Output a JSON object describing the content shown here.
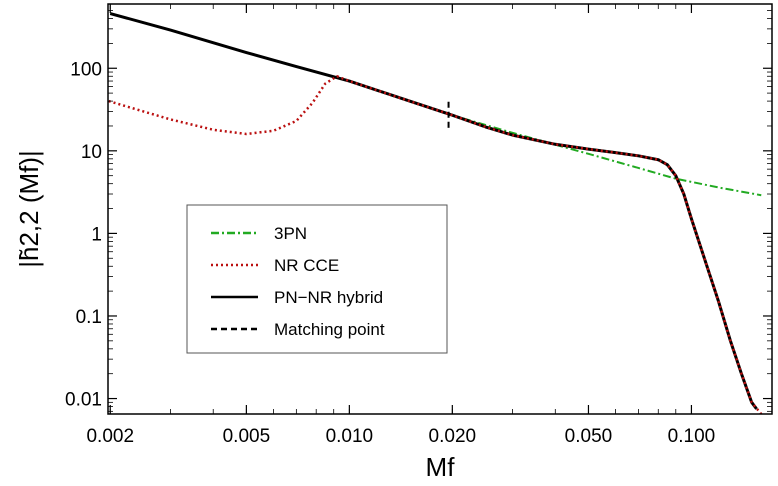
{
  "chart_data": {
    "type": "line",
    "xlabel": "Mf",
    "ylabel": "|h̃2,2 (Mf)|",
    "xscale": "log",
    "yscale": "log",
    "xlim": [
      0.00197,
      0.172
    ],
    "ylim": [
      0.0065,
      600
    ],
    "grid": false,
    "legend_position": "lower-left",
    "x_ticks": [
      {
        "value": 0.002,
        "label": "0.002"
      },
      {
        "value": 0.005,
        "label": "0.005"
      },
      {
        "value": 0.01,
        "label": "0.010"
      },
      {
        "value": 0.02,
        "label": "0.020"
      },
      {
        "value": 0.05,
        "label": "0.050"
      },
      {
        "value": 0.1,
        "label": "0.100"
      }
    ],
    "y_ticks": [
      {
        "value": 0.01,
        "label": "0.01"
      },
      {
        "value": 0.1,
        "label": "0.1"
      },
      {
        "value": 1,
        "label": "1"
      },
      {
        "value": 10,
        "label": "10"
      },
      {
        "value": 100,
        "label": "100"
      }
    ],
    "series": [
      {
        "name": "3PN",
        "color": "#22aa22",
        "style": "dash-dot",
        "points": [
          [
            0.002,
            460
          ],
          [
            0.003,
            290
          ],
          [
            0.005,
            155
          ],
          [
            0.007,
            105
          ],
          [
            0.01,
            70
          ],
          [
            0.015,
            40
          ],
          [
            0.02,
            27
          ],
          [
            0.03,
            16.5
          ],
          [
            0.05,
            9.2
          ],
          [
            0.07,
            6.2
          ],
          [
            0.09,
            4.6
          ],
          [
            0.12,
            3.6
          ],
          [
            0.16,
            2.9
          ]
        ]
      },
      {
        "name": "NR CCE",
        "color": "#bb1111",
        "style": "dotted",
        "points": [
          [
            0.00198,
            40
          ],
          [
            0.0025,
            30
          ],
          [
            0.003,
            24
          ],
          [
            0.004,
            18
          ],
          [
            0.005,
            16
          ],
          [
            0.006,
            17.5
          ],
          [
            0.007,
            23
          ],
          [
            0.0078,
            38
          ],
          [
            0.0085,
            65
          ],
          [
            0.0092,
            80
          ],
          [
            0.01,
            70
          ],
          [
            0.015,
            40
          ],
          [
            0.02,
            27
          ],
          [
            0.025,
            19.5
          ],
          [
            0.03,
            15.5
          ],
          [
            0.04,
            12
          ],
          [
            0.05,
            10.5
          ],
          [
            0.06,
            9.5
          ],
          [
            0.07,
            8.7
          ],
          [
            0.08,
            7.8
          ],
          [
            0.085,
            6.8
          ],
          [
            0.09,
            5
          ],
          [
            0.095,
            3
          ],
          [
            0.1,
            1.5
          ],
          [
            0.11,
            0.45
          ],
          [
            0.12,
            0.15
          ],
          [
            0.13,
            0.05
          ],
          [
            0.14,
            0.02
          ],
          [
            0.15,
            0.009
          ],
          [
            0.16,
            0.0065
          ]
        ]
      },
      {
        "name": "PN−NR hybrid",
        "color": "#000000",
        "style": "solid",
        "points": [
          [
            0.002,
            460
          ],
          [
            0.003,
            290
          ],
          [
            0.005,
            155
          ],
          [
            0.007,
            105
          ],
          [
            0.01,
            70
          ],
          [
            0.015,
            40
          ],
          [
            0.02,
            27
          ],
          [
            0.025,
            19.5
          ],
          [
            0.03,
            15.5
          ],
          [
            0.04,
            12
          ],
          [
            0.05,
            10.5
          ],
          [
            0.06,
            9.5
          ],
          [
            0.07,
            8.7
          ],
          [
            0.08,
            7.8
          ],
          [
            0.085,
            6.8
          ],
          [
            0.09,
            5
          ],
          [
            0.095,
            3
          ],
          [
            0.1,
            1.5
          ],
          [
            0.11,
            0.45
          ],
          [
            0.12,
            0.15
          ],
          [
            0.13,
            0.05
          ],
          [
            0.14,
            0.02
          ],
          [
            0.15,
            0.009
          ],
          [
            0.155,
            0.0075
          ]
        ]
      },
      {
        "name": "Matching point",
        "color": "#000000",
        "style": "dashed",
        "points": [
          [
            0.0195,
            19
          ],
          [
            0.0195,
            42
          ]
        ]
      }
    ]
  }
}
